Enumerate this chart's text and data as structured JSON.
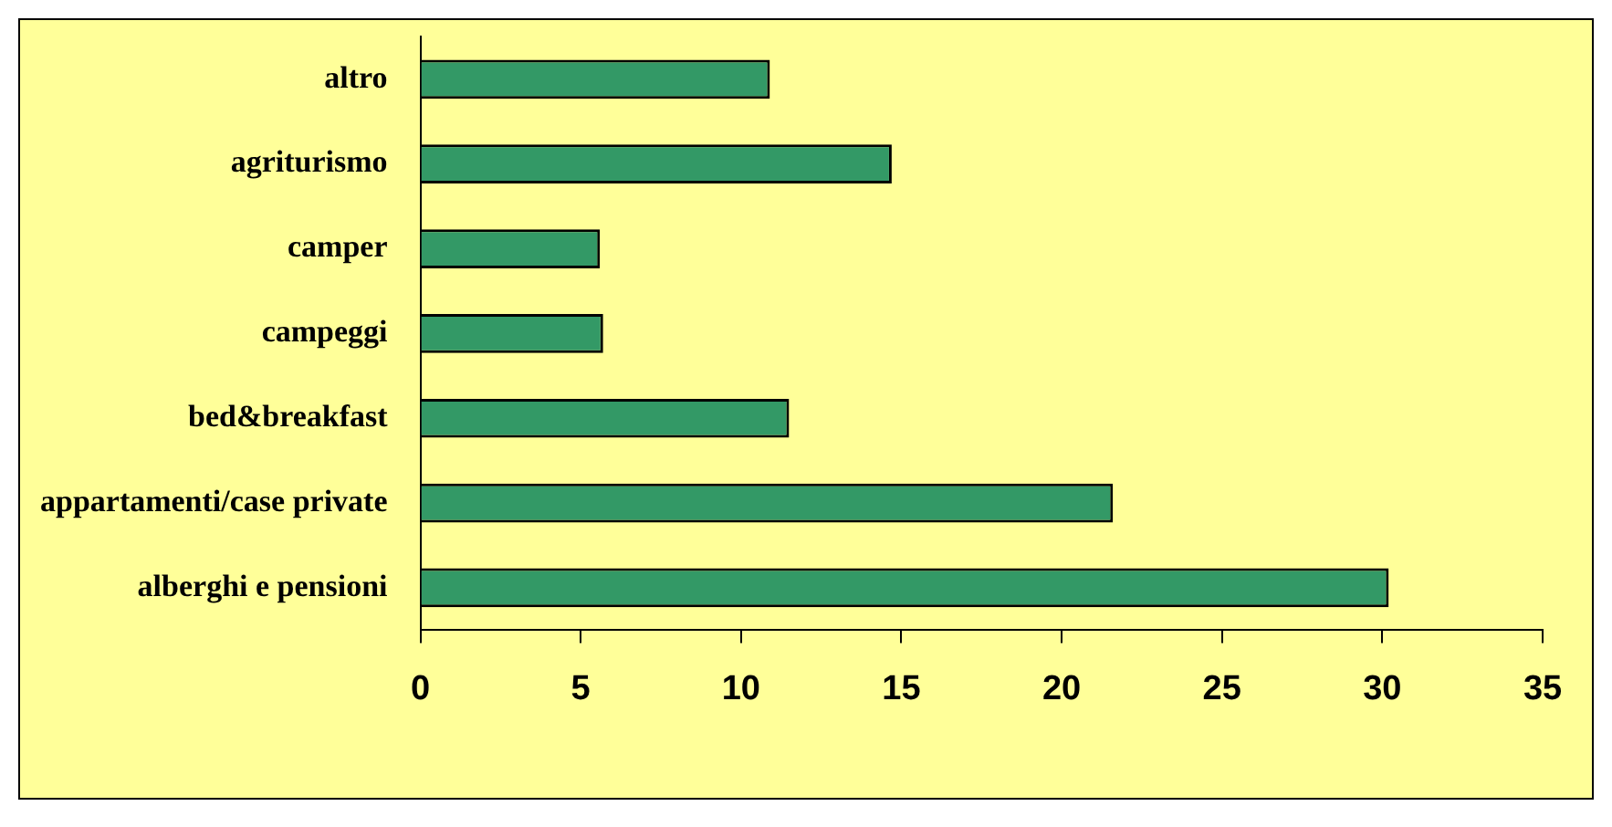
{
  "chart_data": {
    "type": "bar",
    "orientation": "horizontal",
    "categories": [
      "altro",
      "agriturismo",
      "camper",
      "campeggi",
      "bed&breakfast",
      "appartamenti/case private",
      "alberghi e pensioni"
    ],
    "values": [
      10.9,
      14.7,
      5.6,
      5.7,
      11.5,
      21.6,
      30.2
    ],
    "color": "#339966",
    "xlim": [
      0,
      35
    ],
    "xticks": [
      0,
      5,
      10,
      15,
      20,
      25,
      30,
      35
    ],
    "grid": false,
    "legend": false
  }
}
